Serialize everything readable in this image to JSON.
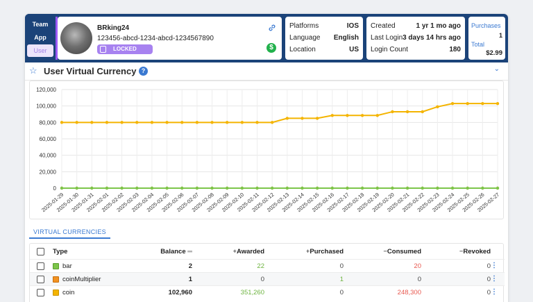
{
  "nav": {
    "items": [
      "Team",
      "App",
      "User"
    ],
    "active": "User"
  },
  "user": {
    "name": "BRking24",
    "id": "123456-abcd-1234-abcd-1234567890",
    "status": "LOCKED",
    "link_icon": "link-icon",
    "currency_icon": "dollar-icon",
    "currency_glyph": "$"
  },
  "info1": {
    "rows": [
      {
        "label": "Platforms",
        "value": "IOS"
      },
      {
        "label": "Language",
        "value": "English"
      },
      {
        "label": "Location",
        "value": "US"
      }
    ]
  },
  "info2": {
    "rows": [
      {
        "label": "Created",
        "value": "1 yr 1 mo ago"
      },
      {
        "label": "Last Login",
        "value": "3 days 14 hrs ago"
      },
      {
        "label": "Login Count",
        "value": "180"
      }
    ]
  },
  "purchases": {
    "label": "Purchases",
    "count": "1",
    "total_label": "Total",
    "total_value": "$2.99"
  },
  "page": {
    "title": "User Virtual Currency",
    "help": "?",
    "star": "☆",
    "chevron": "⌄"
  },
  "colors": {
    "header": "#1b4379",
    "accent": "#3a79d1",
    "locked": "#a782f0",
    "line_bar": "#7cc54a",
    "line_multiplier": "#f29222",
    "line_coin": "#f4b400",
    "awarded": "#6db33f",
    "consumed": "#e8584f"
  },
  "chart_data": {
    "type": "line",
    "x": [
      "2025-01-29",
      "2025-01-30",
      "2025-01-31",
      "2025-02-01",
      "2025-02-02",
      "2025-02-03",
      "2025-02-04",
      "2025-02-05",
      "2025-02-06",
      "2025-02-07",
      "2025-02-08",
      "2025-02-09",
      "2025-02-10",
      "2025-02-11",
      "2025-02-12",
      "2025-02-13",
      "2025-02-14",
      "2025-02-15",
      "2025-02-16",
      "2025-02-17",
      "2025-02-18",
      "2025-02-19",
      "2025-02-20",
      "2025-02-21",
      "2025-02-22",
      "2025-02-23",
      "2025-02-24",
      "2025-02-25",
      "2025-02-26",
      "2025-02-27"
    ],
    "series": [
      {
        "name": "coin",
        "color": "#f4b400",
        "values": [
          80000,
          80000,
          80000,
          80000,
          80000,
          80000,
          80000,
          80000,
          80000,
          80000,
          80000,
          80000,
          80000,
          80000,
          80000,
          85000,
          85000,
          85000,
          88500,
          88500,
          88500,
          88500,
          93000,
          93000,
          93000,
          99000,
          102960,
          102960,
          102960,
          102960
        ]
      },
      {
        "name": "coinMultiplier",
        "color": "#f29222",
        "values": [
          1,
          1,
          1,
          1,
          1,
          1,
          1,
          1,
          1,
          1,
          1,
          1,
          1,
          1,
          1,
          1,
          1,
          1,
          1,
          1,
          1,
          1,
          1,
          1,
          1,
          1,
          1,
          1,
          1,
          1
        ]
      },
      {
        "name": "bar",
        "color": "#7cc54a",
        "values": [
          2,
          2,
          2,
          2,
          2,
          2,
          2,
          2,
          2,
          2,
          2,
          2,
          2,
          2,
          2,
          2,
          2,
          2,
          2,
          2,
          2,
          2,
          2,
          2,
          2,
          2,
          2,
          2,
          2,
          2
        ]
      }
    ],
    "yticks": [
      "0",
      "20,000",
      "40,000",
      "60,000",
      "80,000",
      "100,000",
      "120,000"
    ],
    "ylim": [
      0,
      120000
    ],
    "grid": true
  },
  "tabs": {
    "virtual_currencies": "VIRTUAL CURRENCIES"
  },
  "table": {
    "headers": {
      "type": "Type",
      "balance": "Balance",
      "awarded": "Awarded",
      "purchased": "Purchased",
      "consumed": "Consumed",
      "revoked": "Revoked",
      "sort_icon": "sort-icon",
      "plus": "+",
      "minus": "−"
    },
    "rows": [
      {
        "type": "bar",
        "swatch": "#7cc54a",
        "balance": "2",
        "awarded": "22",
        "purchased": "0",
        "consumed": "20",
        "revoked": "0"
      },
      {
        "type": "coinMultiplier",
        "swatch": "#f29222",
        "balance": "1",
        "awarded": "0",
        "purchased": "1",
        "consumed": "0",
        "revoked": "0"
      },
      {
        "type": "coin",
        "swatch": "#f4b400",
        "balance": "102,960",
        "awarded": "351,260",
        "purchased": "0",
        "consumed": "248,300",
        "revoked": "0"
      }
    ],
    "menu_icon": "more-vertical-icon"
  }
}
